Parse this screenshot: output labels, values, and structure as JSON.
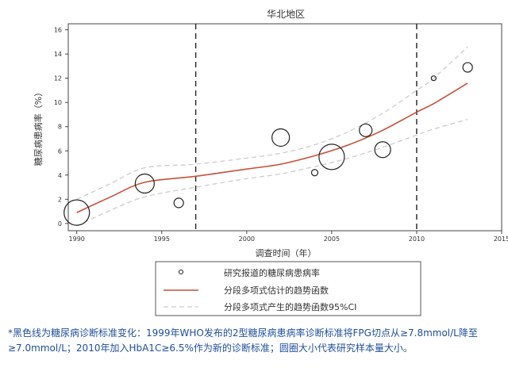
{
  "chart_data": {
    "type": "scatter",
    "title": "华北地区",
    "xlabel": "调查时间（年）",
    "ylabel": "糖尿病患病率（%）",
    "xlim": [
      1989.5,
      2015
    ],
    "ylim": [
      -0.6,
      16.5
    ],
    "xticks": [
      1990,
      1995,
      2000,
      2005,
      2010,
      2015
    ],
    "yticks": [
      0,
      2,
      4,
      6,
      8,
      10,
      12,
      14,
      16
    ],
    "vlines": [
      1997,
      2010
    ],
    "series": [
      {
        "name": "研究报道的糖尿病患病率",
        "kind": "bubble",
        "points": [
          {
            "x": 1990.0,
            "y": 0.9,
            "size": 16
          },
          {
            "x": 1994.0,
            "y": 3.3,
            "size": 12
          },
          {
            "x": 1996.0,
            "y": 1.7,
            "size": 6
          },
          {
            "x": 2002.0,
            "y": 7.1,
            "size": 11
          },
          {
            "x": 2004.0,
            "y": 4.2,
            "size": 4
          },
          {
            "x": 2005.0,
            "y": 5.5,
            "size": 16
          },
          {
            "x": 2007.0,
            "y": 7.7,
            "size": 8
          },
          {
            "x": 2008.0,
            "y": 6.1,
            "size": 10
          },
          {
            "x": 2011.0,
            "y": 12.0,
            "size": 3
          },
          {
            "x": 2013.0,
            "y": 12.9,
            "size": 6
          }
        ]
      },
      {
        "name": "分段多项式估计的趋势函数",
        "kind": "line",
        "color": "#c8503c",
        "x": [
          1990,
          1992,
          1994,
          1997,
          2000,
          2002,
          2004,
          2006,
          2008,
          2010,
          2011,
          2013
        ],
        "y": [
          0.9,
          2.2,
          3.4,
          3.9,
          4.5,
          4.9,
          5.6,
          6.5,
          7.7,
          9.2,
          9.9,
          11.6
        ]
      },
      {
        "name": "分段多项式产生的趋势函数95%CI",
        "kind": "ci",
        "color": "#cccccc",
        "x": [
          1990,
          1992,
          1994,
          1997,
          2000,
          2002,
          2004,
          2006,
          2008,
          2010,
          2011,
          2013
        ],
        "upper": [
          2.0,
          3.3,
          4.6,
          4.9,
          5.4,
          5.8,
          6.5,
          7.6,
          9.1,
          11.0,
          12.0,
          14.6
        ],
        "lower": [
          -0.2,
          1.1,
          2.2,
          3.0,
          3.7,
          4.1,
          4.7,
          5.4,
          6.3,
          7.3,
          7.8,
          8.6
        ]
      }
    ],
    "legend": [
      {
        "label": "研究报道的糖尿病患病率",
        "kind": "bubble"
      },
      {
        "label": "分段多项式估计的趋势函数",
        "kind": "line",
        "color": "#c8503c"
      },
      {
        "label": "分段多项式产生的趋势函数95%CI",
        "kind": "ci",
        "color": "#cccccc"
      }
    ]
  },
  "footnote": "*黑色线为糖尿病诊断标准变化：1999年WHO发布的2型糖尿病患病率诊断标准将FPG切点从≥7.8mmol/L降至≥7.0mmol/L；2010年加入HbA1C≥6.5%作为新的诊断标准；圆圈大小代表研究样本量大小。",
  "colors": {
    "trend": "#c8503c",
    "ci": "#cccccc",
    "footnote": "#1f4e9c"
  }
}
